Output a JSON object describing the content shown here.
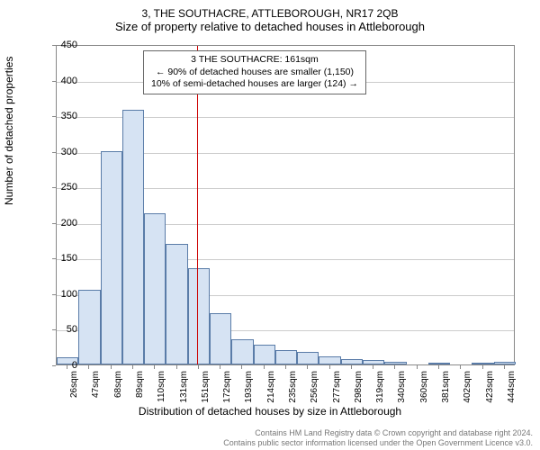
{
  "chart": {
    "type": "histogram",
    "title_line1": "3, THE SOUTHACRE, ATTLEBOROUGH, NR17 2QB",
    "title_line2": "Size of property relative to detached houses in Attleborough",
    "x_label": "Distribution of detached houses by size in Attleborough",
    "y_label": "Number of detached properties",
    "ylim": [
      0,
      450
    ],
    "ytick_step": 50,
    "yticks": [
      0,
      50,
      100,
      150,
      200,
      250,
      300,
      350,
      400,
      450
    ],
    "xticks": [
      "26sqm",
      "47sqm",
      "68sqm",
      "89sqm",
      "110sqm",
      "131sqm",
      "151sqm",
      "172sqm",
      "193sqm",
      "214sqm",
      "235sqm",
      "256sqm",
      "277sqm",
      "298sqm",
      "319sqm",
      "340sqm",
      "360sqm",
      "381sqm",
      "402sqm",
      "423sqm",
      "444sqm"
    ],
    "values": [
      10,
      105,
      300,
      358,
      212,
      170,
      135,
      72,
      35,
      28,
      20,
      18,
      12,
      8,
      6,
      4,
      0,
      3,
      0,
      3,
      4
    ],
    "marker_value": 161,
    "marker_color": "#cc0000",
    "bar_fill": "#d6e3f3",
    "bar_border": "#5a7ca8",
    "grid_color": "#cccccc",
    "background_color": "#ffffff",
    "info_box": {
      "line1": "3 THE SOUTHACRE: 161sqm",
      "line2": "← 90% of detached houses are smaller (1,150)",
      "line3": "10% of semi-detached houses are larger (124) →"
    },
    "title_fontsize": 13,
    "label_fontsize": 12,
    "tick_fontsize": 11
  },
  "footer": {
    "line1": "Contains HM Land Registry data © Crown copyright and database right 2024.",
    "line2": "Contains public sector information licensed under the Open Government Licence v3.0."
  }
}
